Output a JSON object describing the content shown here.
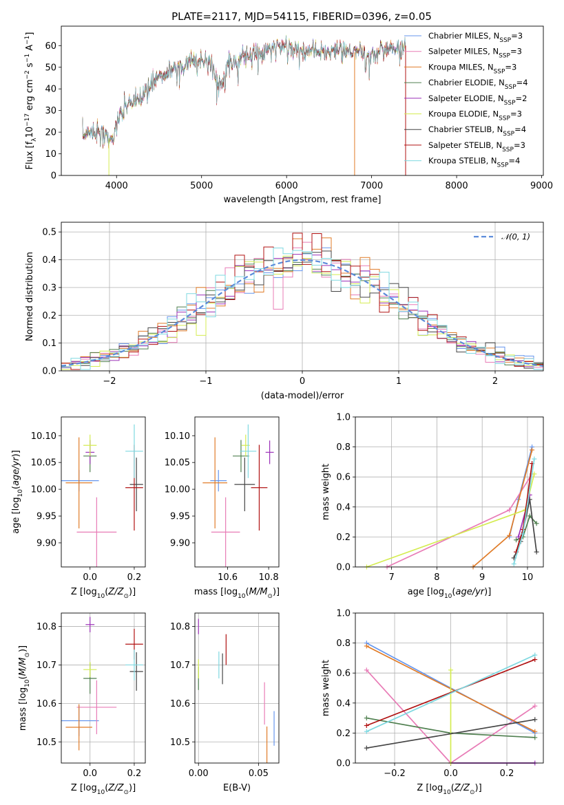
{
  "figure": {
    "title": "PLATE=2117, MJD=54115, FIBERID=0396, z=0.05"
  },
  "colors": {
    "Chabrier MILES": "#6495ED",
    "Salpeter MILES": "#E87BB6",
    "Kroupa MILES": "#E07B27",
    "Chabrier ELODIE": "#4F7F4F",
    "Salpeter ELODIE": "#9B30B8",
    "Kroupa ELODIE": "#D4EC50",
    "Chabrier STELIB": "#444444",
    "Salpeter STELIB": "#B01010",
    "Kroupa STELIB": "#7ED8E0",
    "normal_curve": "#5B8BDA",
    "grid": "#b0b0b0"
  },
  "chart_data": [
    {
      "id": "spectrum",
      "type": "line",
      "title": "PLATE=2117, MJD=54115, FIBERID=0396, z=0.05",
      "xlabel": "wavelength [Angstrom, rest frame]",
      "ylabel": "Flux [f_λ 10^-17 erg cm^-2 s^-1 A^-1]",
      "xlim": [
        3350,
        9020
      ],
      "ylim": [
        0,
        69
      ],
      "xticks": [
        4000,
        5000,
        6000,
        7000,
        8000,
        9000
      ],
      "yticks": [
        0,
        10,
        20,
        30,
        40,
        50,
        60
      ],
      "grid": false,
      "legend_position": "right",
      "legend": [
        {
          "label": "Chabrier MILES, N",
          "sub": "SSP",
          "n": "=3"
        },
        {
          "label": "Salpeter MILES, N",
          "sub": "SSP",
          "n": "=3"
        },
        {
          "label": "Kroupa MILES, N",
          "sub": "SSP",
          "n": "=3"
        },
        {
          "label": "Chabrier ELODIE, N",
          "sub": "SSP",
          "n": "=4"
        },
        {
          "label": "Salpeter ELODIE, N",
          "sub": "SSP",
          "n": "=2"
        },
        {
          "label": "Kroupa ELODIE, N",
          "sub": "SSP",
          "n": "=3"
        },
        {
          "label": "Chabrier STELIB, N",
          "sub": "SSP",
          "n": "=4"
        },
        {
          "label": "Salpeter STELIB, N",
          "sub": "SSP",
          "n": "=3"
        },
        {
          "label": "Kroupa STELIB, N",
          "sub": "SSP",
          "n": "=4"
        }
      ],
      "continuum": {
        "x": [
          3600,
          3700,
          3850,
          3950,
          4000,
          4100,
          4200,
          4300,
          4400,
          4500,
          4700,
          4900,
          5100,
          5200,
          5300,
          5500,
          5700,
          5900,
          6000,
          6200,
          6400,
          6600,
          6800,
          7000,
          7200,
          7300,
          7400
        ],
        "y": [
          18,
          21,
          19,
          16,
          24,
          32,
          34,
          36,
          42,
          46,
          50,
          52,
          54,
          40,
          51,
          55,
          57,
          60,
          59,
          58,
          57,
          58,
          57,
          55,
          59,
          58,
          60
        ]
      },
      "line_dips": [
        {
          "series": "Kroupa ELODIE",
          "x": 3910,
          "y": 0
        },
        {
          "series": "Kroupa MILES",
          "x": 6800,
          "y": 0
        },
        {
          "series": "Salpeter STELIB",
          "x": 7400,
          "y": 0
        }
      ]
    },
    {
      "id": "residuals",
      "type": "line",
      "xlabel": "(data-model)/error",
      "ylabel": "Normed distribution",
      "xlim": [
        -2.5,
        2.5
      ],
      "ylim": [
        0,
        0.535
      ],
      "xticks": [
        -2,
        -1,
        0,
        1,
        2
      ],
      "xtick_labels": [
        "−2",
        "−1",
        "0",
        "1",
        "2"
      ],
      "yticks": [
        0.0,
        0.1,
        0.2,
        0.3,
        0.4,
        0.5
      ],
      "ytick_labels": [
        "0.0",
        "0.1",
        "0.2",
        "0.3",
        "0.4",
        "0.5"
      ],
      "grid": true,
      "legend_position": "top-right",
      "legend": [
        {
          "label": "𝒩(0, 1)"
        }
      ],
      "bins": [
        -2.5,
        -2.4,
        -2.3,
        -2.2,
        -2.1,
        -2.0,
        -1.9,
        -1.8,
        -1.7,
        -1.6,
        -1.5,
        -1.4,
        -1.3,
        -1.2,
        -1.1,
        -1.0,
        -0.9,
        -0.8,
        -0.7,
        -0.6,
        -0.5,
        -0.4,
        -0.3,
        -0.2,
        -0.1,
        0.0,
        0.1,
        0.2,
        0.3,
        0.4,
        0.5,
        0.6,
        0.7,
        0.8,
        0.9,
        1.0,
        1.1,
        1.2,
        1.3,
        1.4,
        1.5,
        1.6,
        1.7,
        1.8,
        1.9,
        2.0,
        2.1,
        2.2,
        2.3,
        2.4,
        2.5
      ],
      "normal_pdf": true
    },
    {
      "id": "age_vs_Z",
      "type": "scatter",
      "xlabel": "Z [log10(Z/Z⊙)]",
      "ylabel": "age [log10(age/yr)]",
      "xlim": [
        -0.13,
        0.25
      ],
      "ylim": [
        9.855,
        10.135
      ],
      "xticks": [
        0.0,
        0.2
      ],
      "xtick_labels": [
        "0.0",
        "0.2"
      ],
      "yticks": [
        9.9,
        9.95,
        10.0,
        10.05,
        10.1
      ],
      "ytick_labels": [
        "9.90",
        "9.95",
        "10.00",
        "10.05",
        "10.10"
      ],
      "grid": false,
      "points": [
        {
          "series": "Chabrier MILES",
          "x": -0.05,
          "xerr": 0.09,
          "y": 10.016,
          "yerr": 0.02
        },
        {
          "series": "Salpeter MILES",
          "x": 0.03,
          "xerr": 0.09,
          "y": 9.92,
          "yerr": 0.065
        },
        {
          "series": "Kroupa MILES",
          "x": -0.05,
          "xerr": 0.06,
          "y": 10.012,
          "yerr": 0.085
        },
        {
          "series": "Chabrier ELODIE",
          "x": 0.0,
          "xerr": 0.03,
          "y": 10.062,
          "yerr": 0.03
        },
        {
          "series": "Salpeter ELODIE",
          "x": 0.0,
          "xerr": 0.02,
          "y": 10.069,
          "yerr": 0.022
        },
        {
          "series": "Kroupa ELODIE",
          "x": 0.0,
          "xerr": 0.03,
          "y": 10.082,
          "yerr": 0.02
        },
        {
          "series": "Chabrier STELIB",
          "x": 0.21,
          "xerr": 0.03,
          "y": 10.009,
          "yerr": 0.05
        },
        {
          "series": "Salpeter STELIB",
          "x": 0.2,
          "xerr": 0.04,
          "y": 10.003,
          "yerr": 0.08
        },
        {
          "series": "Kroupa STELIB",
          "x": 0.2,
          "xerr": 0.04,
          "y": 10.071,
          "yerr": 0.05
        }
      ]
    },
    {
      "id": "age_vs_mass",
      "type": "scatter",
      "xlabel": "mass [log10(M/M⊙)]",
      "ylabel": "",
      "xlim": [
        10.44,
        10.85
      ],
      "ylim": [
        9.855,
        10.135
      ],
      "xticks": [
        10.6,
        10.8
      ],
      "xtick_labels": [
        "10.6",
        "10.8"
      ],
      "yticks": [
        9.9,
        9.95,
        10.0,
        10.05,
        10.1
      ],
      "ytick_labels": [
        "9.90",
        "9.95",
        "10.00",
        "10.05",
        "10.10"
      ],
      "grid": false,
      "points": [
        {
          "series": "Chabrier MILES",
          "x": 10.555,
          "xerr": 0.04,
          "y": 10.016,
          "yerr": 0.02
        },
        {
          "series": "Salpeter MILES",
          "x": 10.59,
          "xerr": 0.07,
          "y": 9.92,
          "yerr": 0.065
        },
        {
          "series": "Kroupa MILES",
          "x": 10.538,
          "xerr": 0.06,
          "y": 10.012,
          "yerr": 0.085
        },
        {
          "series": "Chabrier ELODIE",
          "x": 10.665,
          "xerr": 0.04,
          "y": 10.062,
          "yerr": 0.03
        },
        {
          "series": "Salpeter ELODIE",
          "x": 10.805,
          "xerr": 0.02,
          "y": 10.069,
          "yerr": 0.022
        },
        {
          "series": "Kroupa ELODIE",
          "x": 10.688,
          "xerr": 0.02,
          "y": 10.082,
          "yerr": 0.02
        },
        {
          "series": "Chabrier STELIB",
          "x": 10.683,
          "xerr": 0.05,
          "y": 10.009,
          "yerr": 0.05
        },
        {
          "series": "Salpeter STELIB",
          "x": 10.754,
          "xerr": 0.04,
          "y": 10.003,
          "yerr": 0.08
        },
        {
          "series": "Kroupa STELIB",
          "x": 10.7,
          "xerr": 0.04,
          "y": 10.071,
          "yerr": 0.05
        }
      ]
    },
    {
      "id": "weight_vs_age",
      "type": "line",
      "xlabel": "age [log10(age/yr)]",
      "ylabel": "mass weight",
      "xlim": [
        6.2,
        10.35
      ],
      "ylim": [
        0,
        1.0
      ],
      "xticks": [
        7,
        8,
        9,
        10
      ],
      "xtick_labels": [
        "7",
        "8",
        "9",
        "10"
      ],
      "yticks": [
        0.0,
        0.2,
        0.4,
        0.6,
        0.8,
        1.0
      ],
      "ytick_labels": [
        "0.0",
        "0.2",
        "0.4",
        "0.6",
        "0.8",
        "1.0"
      ],
      "grid": true,
      "series": [
        {
          "name": "Chabrier MILES",
          "x": [
            9.6,
            9.8,
            10.1
          ],
          "y": [
            0.2,
            0.45,
            0.8
          ]
        },
        {
          "name": "Salpeter MILES",
          "x": [
            6.9,
            9.6,
            10.1
          ],
          "y": [
            0.0,
            0.38,
            0.62
          ]
        },
        {
          "name": "Kroupa MILES",
          "x": [
            8.8,
            9.6,
            10.1
          ],
          "y": [
            0.0,
            0.21,
            0.78
          ]
        },
        {
          "name": "Chabrier ELODIE",
          "x": [
            9.75,
            9.9,
            10.05,
            10.2
          ],
          "y": [
            0.18,
            0.2,
            0.34,
            0.29
          ]
        },
        {
          "name": "Salpeter ELODIE",
          "x": [
            9.8,
            10.05
          ],
          "y": [
            0.2,
            0.48
          ]
        },
        {
          "name": "Kroupa ELODIE",
          "x": [
            6.45,
            9.95,
            10.15
          ],
          "y": [
            0.0,
            0.38,
            0.62
          ]
        },
        {
          "name": "Chabrier STELIB",
          "x": [
            9.7,
            9.85,
            10.05,
            10.2
          ],
          "y": [
            0.06,
            0.17,
            0.45,
            0.1
          ]
        },
        {
          "name": "Salpeter STELIB",
          "x": [
            9.75,
            9.9,
            10.1
          ],
          "y": [
            0.1,
            0.25,
            0.69
          ]
        },
        {
          "name": "Kroupa STELIB",
          "x": [
            9.7,
            9.9,
            10.15
          ],
          "y": [
            0.02,
            0.22,
            0.72
          ]
        }
      ]
    },
    {
      "id": "mass_vs_Z",
      "type": "scatter",
      "xlabel": "Z [log10(Z/Z⊙)]",
      "ylabel": "mass [log10(M/M⊙)]",
      "xlim": [
        -0.13,
        0.25
      ],
      "ylim": [
        10.445,
        10.835
      ],
      "xticks": [
        0.0,
        0.2
      ],
      "xtick_labels": [
        "0.0",
        "0.2"
      ],
      "yticks": [
        10.5,
        10.6,
        10.7,
        10.8
      ],
      "ytick_labels": [
        "10.5",
        "10.6",
        "10.7",
        "10.8"
      ],
      "grid": true,
      "points": [
        {
          "series": "Chabrier MILES",
          "x": -0.05,
          "xerr": 0.09,
          "y": 10.555,
          "yerr": 0.04
        },
        {
          "series": "Salpeter MILES",
          "x": 0.03,
          "xerr": 0.09,
          "y": 10.59,
          "yerr": 0.07
        },
        {
          "series": "Kroupa MILES",
          "x": -0.05,
          "xerr": 0.06,
          "y": 10.538,
          "yerr": 0.06
        },
        {
          "series": "Chabrier ELODIE",
          "x": 0.0,
          "xerr": 0.03,
          "y": 10.665,
          "yerr": 0.04
        },
        {
          "series": "Salpeter ELODIE",
          "x": 0.0,
          "xerr": 0.02,
          "y": 10.805,
          "yerr": 0.02
        },
        {
          "series": "Kroupa ELODIE",
          "x": 0.0,
          "xerr": 0.03,
          "y": 10.688,
          "yerr": 0.02
        },
        {
          "series": "Chabrier STELIB",
          "x": 0.21,
          "xerr": 0.03,
          "y": 10.683,
          "yerr": 0.05
        },
        {
          "series": "Salpeter STELIB",
          "x": 0.2,
          "xerr": 0.04,
          "y": 10.754,
          "yerr": 0.04
        },
        {
          "series": "Kroupa STELIB",
          "x": 0.2,
          "xerr": 0.04,
          "y": 10.7,
          "yerr": 0.04
        }
      ]
    },
    {
      "id": "mass_vs_ebv",
      "type": "scatter",
      "xlabel": "E(B-V)",
      "ylabel": "",
      "xlim": [
        -0.003,
        0.067
      ],
      "ylim": [
        10.445,
        10.835
      ],
      "xticks": [
        0.0,
        0.05
      ],
      "xtick_labels": [
        "0.00",
        "0.05"
      ],
      "yticks": [
        10.5,
        10.6,
        10.7,
        10.8
      ],
      "ytick_labels": [
        "10.5",
        "10.6",
        "10.7",
        "10.8"
      ],
      "grid": true,
      "points": [
        {
          "series": "Chabrier MILES",
          "x": 0.063,
          "xerr": 0.0,
          "y": 10.535,
          "yerr": 0.045
        },
        {
          "series": "Salpeter MILES",
          "x": 0.055,
          "xerr": 0.0,
          "y": 10.6,
          "yerr": 0.055
        },
        {
          "series": "Kroupa MILES",
          "x": 0.057,
          "xerr": 0.0,
          "y": 10.49,
          "yerr": 0.05
        },
        {
          "series": "Chabrier ELODIE",
          "x": 0.0,
          "xerr": 0.0,
          "y": 10.665,
          "yerr": 0.03
        },
        {
          "series": "Salpeter ELODIE",
          "x": 0.0,
          "xerr": 0.0,
          "y": 10.8,
          "yerr": 0.02
        },
        {
          "series": "Kroupa ELODIE",
          "x": 0.0,
          "xerr": 0.0,
          "y": 10.69,
          "yerr": 0.025
        },
        {
          "series": "Chabrier STELIB",
          "x": 0.02,
          "xerr": 0.0,
          "y": 10.69,
          "yerr": 0.04
        },
        {
          "series": "Salpeter STELIB",
          "x": 0.023,
          "xerr": 0.0,
          "y": 10.74,
          "yerr": 0.04
        },
        {
          "series": "Kroupa STELIB",
          "x": 0.017,
          "xerr": 0.0,
          "y": 10.7,
          "yerr": 0.035
        }
      ]
    },
    {
      "id": "weight_vs_Z",
      "type": "line",
      "xlabel": "Z [log10(Z/Z⊙)]",
      "ylabel": "mass weight",
      "xlim": [
        -0.34,
        0.33
      ],
      "ylim": [
        0,
        1.0
      ],
      "xticks": [
        -0.2,
        0.0,
        0.2
      ],
      "xtick_labels": [
        "−0.2",
        "0.0",
        "0.2"
      ],
      "yticks": [
        0.0,
        0.2,
        0.4,
        0.6,
        0.8,
        1.0
      ],
      "ytick_labels": [
        "0.0",
        "0.2",
        "0.4",
        "0.6",
        "0.8",
        "1.0"
      ],
      "grid": true,
      "series": [
        {
          "name": "Chabrier MILES",
          "x": [
            -0.3,
            0.3
          ],
          "y": [
            0.8,
            0.2
          ]
        },
        {
          "name": "Salpeter MILES",
          "x": [
            -0.3,
            0.0,
            0.3
          ],
          "y": [
            0.62,
            0.0,
            0.38
          ]
        },
        {
          "name": "Kroupa MILES",
          "x": [
            -0.3,
            0.3
          ],
          "y": [
            0.78,
            0.21
          ]
        },
        {
          "name": "Chabrier ELODIE",
          "x": [
            -0.3,
            0.0,
            0.3
          ],
          "y": [
            0.3,
            0.2,
            0.17
          ]
        },
        {
          "name": "Salpeter ELODIE",
          "x": [
            0.0,
            0.3
          ],
          "y": [
            0.0,
            0.0
          ]
        },
        {
          "name": "Kroupa ELODIE",
          "x": [
            0.0,
            0.0
          ],
          "y": [
            0.0,
            0.62
          ]
        },
        {
          "name": "Chabrier STELIB",
          "x": [
            -0.3,
            0.3
          ],
          "y": [
            0.1,
            0.29
          ]
        },
        {
          "name": "Salpeter STELIB",
          "x": [
            -0.3,
            0.3
          ],
          "y": [
            0.25,
            0.69
          ]
        },
        {
          "name": "Kroupa STELIB",
          "x": [
            -0.3,
            0.3
          ],
          "y": [
            0.21,
            0.72
          ]
        }
      ]
    }
  ]
}
